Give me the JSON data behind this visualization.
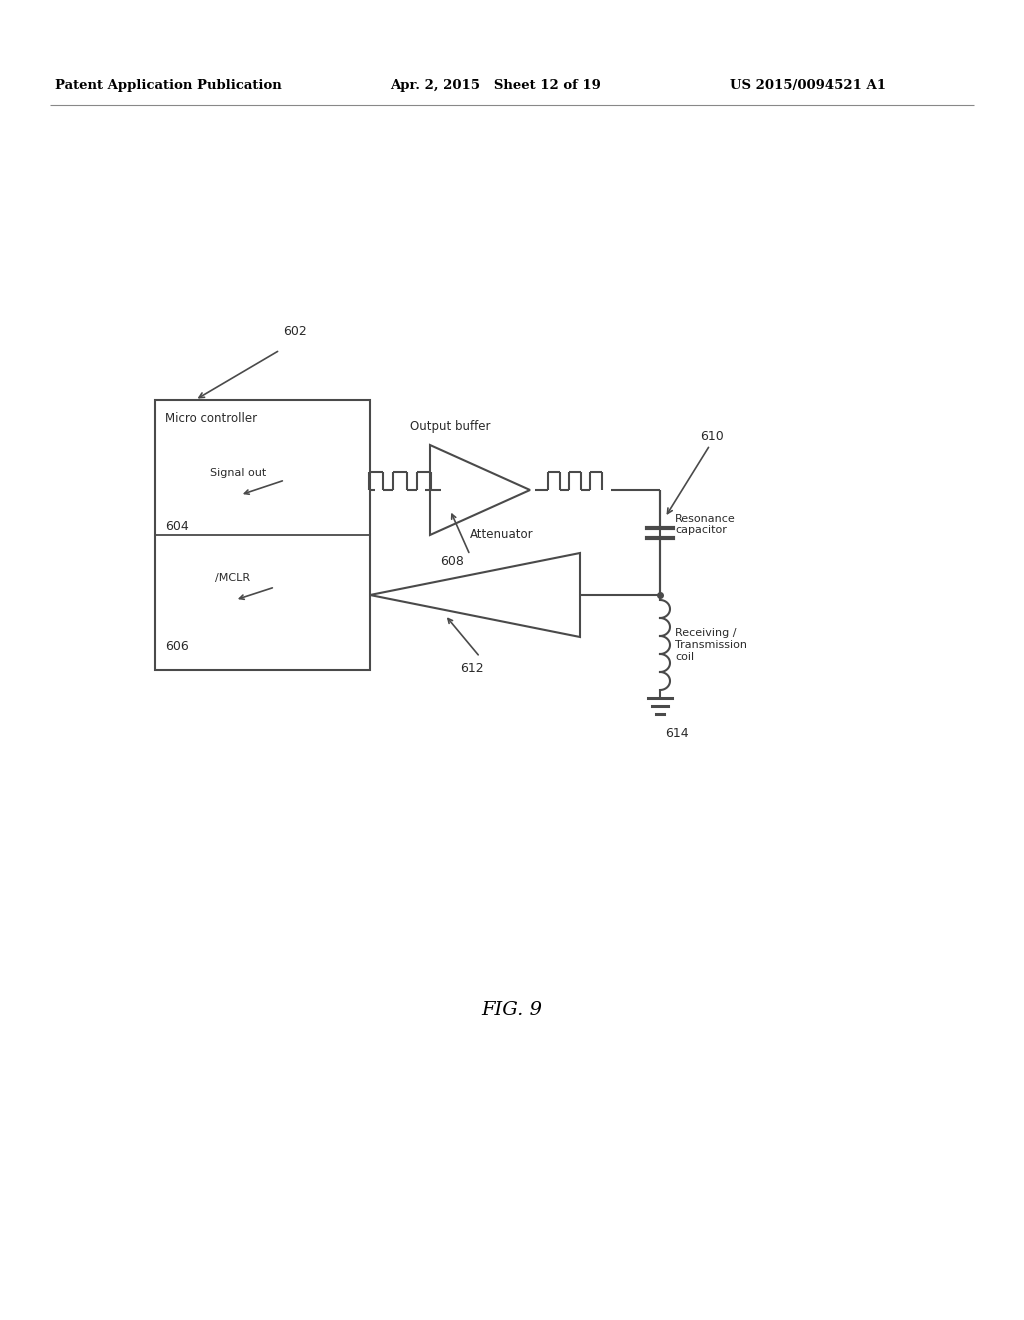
{
  "bg_color": "#ffffff",
  "line_color": "#4a4a4a",
  "text_color": "#2a2a2a",
  "header_left": "Patent Application Publication",
  "header_mid": "Apr. 2, 2015   Sheet 12 of 19",
  "header_right": "US 2015/0094521 A1",
  "fig_label": "FIG. 9",
  "labels": {
    "micro_controller": "Micro controller",
    "signal_out": "Signal out",
    "label_604": "604",
    "label_606": "606",
    "mclr": "/MCLR",
    "output_buffer": "Output buffer",
    "label_608": "608",
    "attenuator": "Attenuator",
    "label_612": "612",
    "label_602": "602",
    "label_610": "610",
    "label_614": "614",
    "resonance_cap": "Resonance\ncapacitor",
    "receiving_coil": "Receiving /\nTransmission\ncoil"
  }
}
